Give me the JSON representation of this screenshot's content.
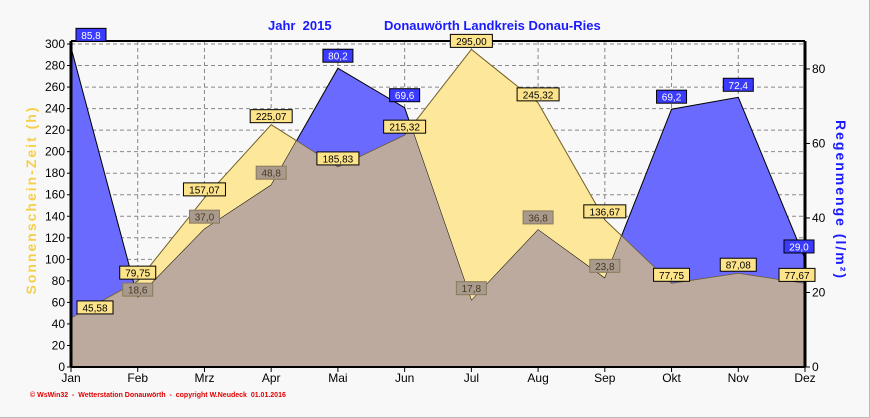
{
  "chart_data": {
    "type": "area",
    "title_year": "Jahr  2015",
    "title_station": "Donauwörth Landkreis Donau-Ries",
    "categories": [
      "Jan",
      "Feb",
      "Mrz",
      "Apr",
      "Mai",
      "Jun",
      "Jul",
      "Aug",
      "Sep",
      "Okt",
      "Nov",
      "Dez"
    ],
    "series": [
      {
        "name": "Sonnenschein-Zeit",
        "axis": "left",
        "color": "#fde79a",
        "values": [
          45.58,
          79.75,
          157.07,
          225.07,
          185.83,
          215.32,
          295.0,
          245.32,
          136.67,
          77.75,
          87.08,
          77.67
        ],
        "labels": [
          "45,58",
          "79,75",
          "157,07",
          "225,07",
          "185,83",
          "215,32",
          "295,00",
          "245,32",
          "136,67",
          "77,75",
          "87,08",
          "77,67"
        ]
      },
      {
        "name": "Regenmenge",
        "axis": "right",
        "color": "#6a6aff",
        "values": [
          85.8,
          18.6,
          37.0,
          48.8,
          80.2,
          69.6,
          17.8,
          36.8,
          23.8,
          69.2,
          72.4,
          29.0
        ],
        "labels": [
          "85,8",
          "18,6",
          "37,0",
          "48,8",
          "80,2",
          "69,6",
          "17,8",
          "36,8",
          "23,8",
          "69,2",
          "72,4",
          "29,0"
        ]
      }
    ],
    "overlap_color": "#bcaa9e",
    "ylabel_left": "Sonnenschein-Zeit  (h)",
    "ylabel_right": "Regenmenge  (l/m²)",
    "ylim_left": [
      0,
      300
    ],
    "ylim_right": [
      0,
      86.7
    ],
    "yticks_left": [
      0,
      20,
      40,
      60,
      80,
      100,
      120,
      140,
      160,
      180,
      200,
      220,
      240,
      260,
      280,
      300
    ],
    "yticks_right": [
      0,
      20,
      40,
      60,
      80
    ],
    "grid": true
  },
  "footer": "© WsWin32  -  Wetterstation Donauwörth  -  copyright W.Neudeck  01.01.2016"
}
